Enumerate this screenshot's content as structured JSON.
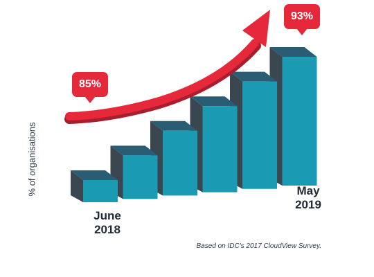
{
  "chart_data": {
    "type": "bar",
    "ylabel": "% of organisations",
    "categories": [
      "June 2018",
      "",
      "",
      "",
      "",
      "May 2019"
    ],
    "values": [
      85,
      86.6,
      88.2,
      89.8,
      91.4,
      93
    ],
    "ylim": [
      83,
      94
    ],
    "grid": false,
    "legend": "none",
    "category_labels": {
      "start": {
        "line1": "June",
        "line2": "2018"
      },
      "end": {
        "line1": "May",
        "line2": "2019"
      }
    },
    "annotations": [
      {
        "text": "85%",
        "category_index": 0
      },
      {
        "text": "93%",
        "category_index": 5
      }
    ],
    "source": "Based on IDC's 2017 CloudView Survey.",
    "colors": {
      "bar_front": "#1a9bb3",
      "bar_top": "#2a5d74",
      "bar_side": "#3a4650",
      "arrow": "#e5283a",
      "arrow_shadow": "#a81e2c",
      "bubble": "#e5283a"
    }
  }
}
